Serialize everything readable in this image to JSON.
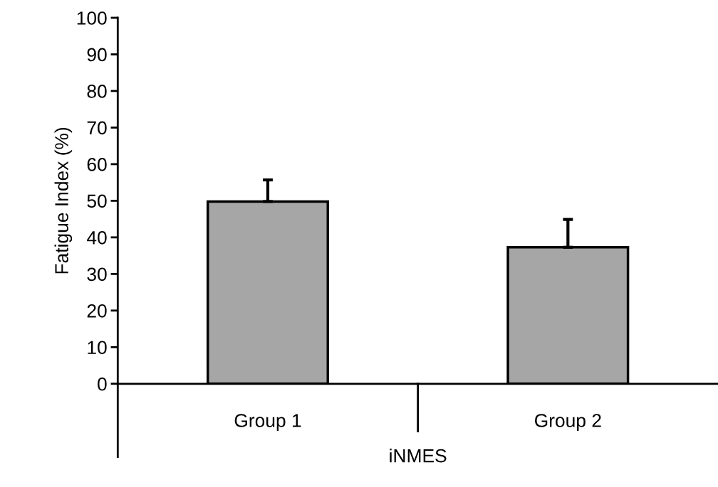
{
  "chart_data": {
    "type": "bar",
    "xlabel": "iNMES",
    "ylabel": "Fatigue Index (%)",
    "categories": [
      "Group 1",
      "Group 2"
    ],
    "values": [
      49.8,
      37.3
    ],
    "errors": [
      [
        49.8,
        55.7
      ],
      [
        37.3,
        44.9
      ]
    ],
    "color": "#a6a6a6",
    "ylim": [
      0,
      100
    ],
    "yticks": [
      0,
      10,
      20,
      30,
      40,
      50,
      60,
      70,
      80,
      90,
      100
    ],
    "grid": false
  }
}
